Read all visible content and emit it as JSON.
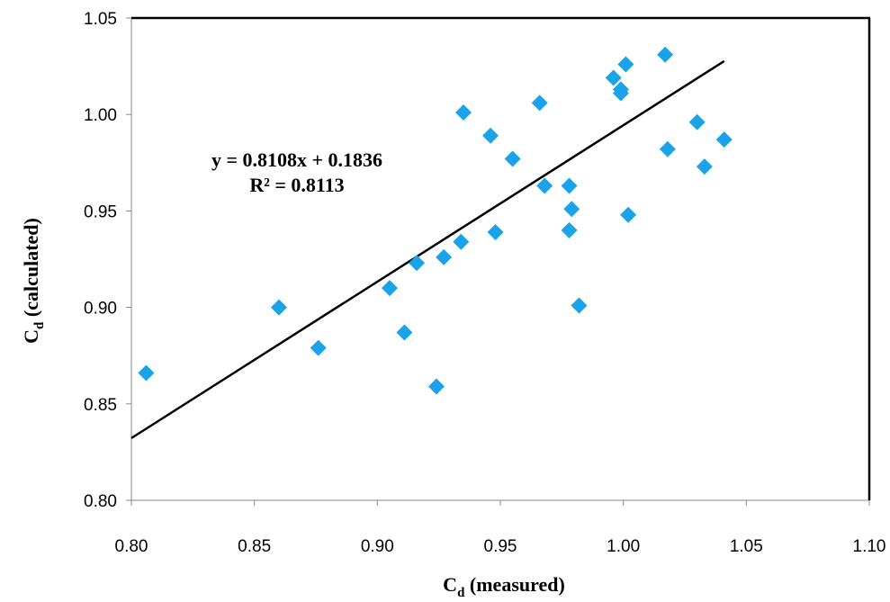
{
  "chart_data": {
    "type": "scatter",
    "title": "",
    "xlabel": {
      "main": "C",
      "sub": "d",
      "suffix": " (measured)"
    },
    "ylabel": {
      "main": "C",
      "sub": "d",
      "suffix": " (calculated)"
    },
    "xlim": [
      0.8,
      1.1
    ],
    "ylim": [
      0.8,
      1.05
    ],
    "x_ticks": [
      "0.80",
      "0.85",
      "0.90",
      "0.95",
      "1.00",
      "1.05",
      "1.10"
    ],
    "y_ticks": [
      "0.80",
      "0.85",
      "0.90",
      "0.95",
      "1.00",
      "1.05"
    ],
    "grid": false,
    "marker": "diamond",
    "marker_color": "#1aa3e8",
    "line_color": "#000000",
    "points": [
      [
        0.806,
        0.866
      ],
      [
        0.86,
        0.9
      ],
      [
        0.876,
        0.879
      ],
      [
        0.905,
        0.91
      ],
      [
        0.911,
        0.887
      ],
      [
        0.916,
        0.923
      ],
      [
        0.924,
        0.859
      ],
      [
        0.927,
        0.926
      ],
      [
        0.934,
        0.934
      ],
      [
        0.935,
        1.001
      ],
      [
        0.946,
        0.989
      ],
      [
        0.948,
        0.939
      ],
      [
        0.955,
        0.977
      ],
      [
        0.966,
        1.006
      ],
      [
        0.968,
        0.963
      ],
      [
        0.978,
        0.963
      ],
      [
        0.979,
        0.951
      ],
      [
        0.978,
        0.94
      ],
      [
        0.982,
        0.901
      ],
      [
        0.996,
        1.019
      ],
      [
        0.999,
        1.013
      ],
      [
        0.999,
        1.011
      ],
      [
        1.001,
        1.026
      ],
      [
        1.002,
        0.948
      ],
      [
        1.017,
        1.031
      ],
      [
        1.018,
        0.982
      ],
      [
        1.03,
        0.996
      ],
      [
        1.033,
        0.973
      ],
      [
        1.041,
        0.987
      ]
    ],
    "trendline": {
      "slope": 0.8108,
      "intercept": 0.1836,
      "x_range": [
        0.8,
        1.041
      ],
      "equation_text": "y = 0.8108x + 0.1836",
      "r2_text": "R² = 0.8113"
    }
  }
}
